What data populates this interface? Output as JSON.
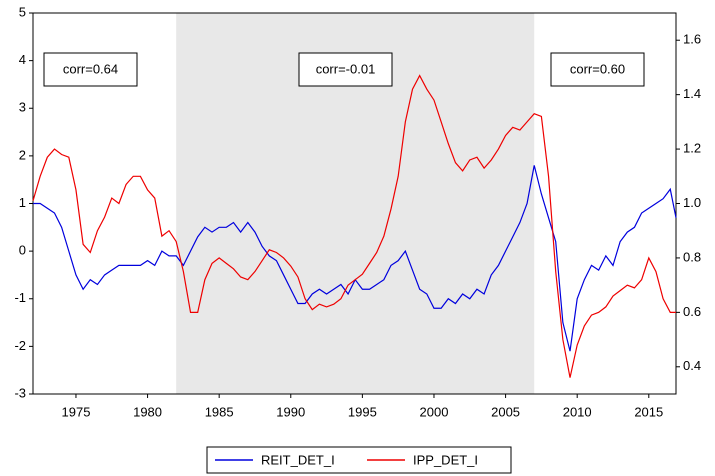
{
  "chart_data": {
    "type": "line",
    "x": [
      1972,
      1972.5,
      1973,
      1973.5,
      1974,
      1974.5,
      1975,
      1975.5,
      1976,
      1976.5,
      1977,
      1977.5,
      1978,
      1978.5,
      1979,
      1979.5,
      1980,
      1980.5,
      1981,
      1981.5,
      1982,
      1982.5,
      1983,
      1983.5,
      1984,
      1984.5,
      1985,
      1985.5,
      1986,
      1986.5,
      1987,
      1987.5,
      1988,
      1988.5,
      1989,
      1989.5,
      1990,
      1990.5,
      1991,
      1991.5,
      1992,
      1992.5,
      1993,
      1993.5,
      1994,
      1994.5,
      1995,
      1995.5,
      1996,
      1996.5,
      1997,
      1997.5,
      1998,
      1998.5,
      1999,
      1999.5,
      2000,
      2000.5,
      2001,
      2001.5,
      2002,
      2002.5,
      2003,
      2003.5,
      2004,
      2004.5,
      2005,
      2005.5,
      2006,
      2006.5,
      2007,
      2007.5,
      2008,
      2008.5,
      2009,
      2009.5,
      2010,
      2010.5,
      2011,
      2011.5,
      2012,
      2012.5,
      2013,
      2013.5,
      2014,
      2014.5,
      2015,
      2015.5,
      2016,
      2016.5,
      2016.9
    ],
    "series": [
      {
        "name": "REIT_DET_I",
        "color": "#0000dd",
        "axis": "y",
        "values": [
          1.0,
          1.0,
          0.9,
          0.8,
          0.5,
          0.0,
          -0.5,
          -0.8,
          -0.6,
          -0.7,
          -0.5,
          -0.4,
          -0.3,
          -0.3,
          -0.3,
          -0.3,
          -0.2,
          -0.3,
          0.0,
          -0.1,
          -0.1,
          -0.3,
          0.0,
          0.3,
          0.5,
          0.4,
          0.5,
          0.5,
          0.6,
          0.4,
          0.6,
          0.4,
          0.1,
          -0.1,
          -0.2,
          -0.5,
          -0.8,
          -1.1,
          -1.1,
          -0.9,
          -0.8,
          -0.9,
          -0.8,
          -0.7,
          -0.9,
          -0.6,
          -0.8,
          -0.8,
          -0.7,
          -0.6,
          -0.3,
          -0.2,
          0.0,
          -0.4,
          -0.8,
          -0.9,
          -1.2,
          -1.2,
          -1.0,
          -1.1,
          -0.9,
          -1.0,
          -0.8,
          -0.9,
          -0.5,
          -0.3,
          0.0,
          0.3,
          0.6,
          1.0,
          1.8,
          1.2,
          0.7,
          0.2,
          -1.5,
          -2.1,
          -1.0,
          -0.6,
          -0.3,
          -0.4,
          -0.1,
          -0.3,
          0.2,
          0.4,
          0.5,
          0.8,
          0.9,
          1.0,
          1.1,
          1.3,
          0.7
        ]
      },
      {
        "name": "IPP_DET_I",
        "color": "#ee0000",
        "axis": "y2",
        "values": [
          1.01,
          1.1,
          1.17,
          1.2,
          1.18,
          1.17,
          1.05,
          0.85,
          0.82,
          0.9,
          0.95,
          1.02,
          1.0,
          1.07,
          1.1,
          1.1,
          1.05,
          1.02,
          0.88,
          0.9,
          0.86,
          0.75,
          0.6,
          0.6,
          0.72,
          0.78,
          0.8,
          0.78,
          0.76,
          0.73,
          0.72,
          0.75,
          0.79,
          0.83,
          0.82,
          0.8,
          0.77,
          0.73,
          0.65,
          0.61,
          0.63,
          0.62,
          0.63,
          0.65,
          0.7,
          0.72,
          0.74,
          0.78,
          0.82,
          0.88,
          0.98,
          1.1,
          1.3,
          1.42,
          1.47,
          1.42,
          1.38,
          1.3,
          1.22,
          1.15,
          1.12,
          1.16,
          1.17,
          1.13,
          1.16,
          1.2,
          1.25,
          1.28,
          1.27,
          1.3,
          1.33,
          1.32,
          1.1,
          0.75,
          0.5,
          0.36,
          0.48,
          0.55,
          0.59,
          0.6,
          0.62,
          0.66,
          0.68,
          0.7,
          0.69,
          0.72,
          0.8,
          0.75,
          0.65,
          0.6,
          0.6
        ]
      }
    ],
    "xlim": [
      1972,
      2016.9
    ],
    "xticks": [
      1975,
      1980,
      1985,
      1990,
      1995,
      2000,
      2005,
      2010,
      2015
    ],
    "ylim": [
      -3,
      5
    ],
    "yticks": [
      -3,
      -2,
      -1,
      0,
      1,
      2,
      3,
      4,
      5
    ],
    "y2lim": [
      0.3,
      1.7
    ],
    "y2ticks": [
      0.4,
      0.6,
      0.8,
      {
        "value": 1,
        "label": "1.0"
      },
      1.2,
      1.4,
      1.6
    ],
    "shaded_range": [
      1982,
      2007
    ],
    "shade_color": "#e8e8e8",
    "annotations": [
      "corr=0.64",
      "corr=-0.01",
      "corr=0.60"
    ]
  }
}
